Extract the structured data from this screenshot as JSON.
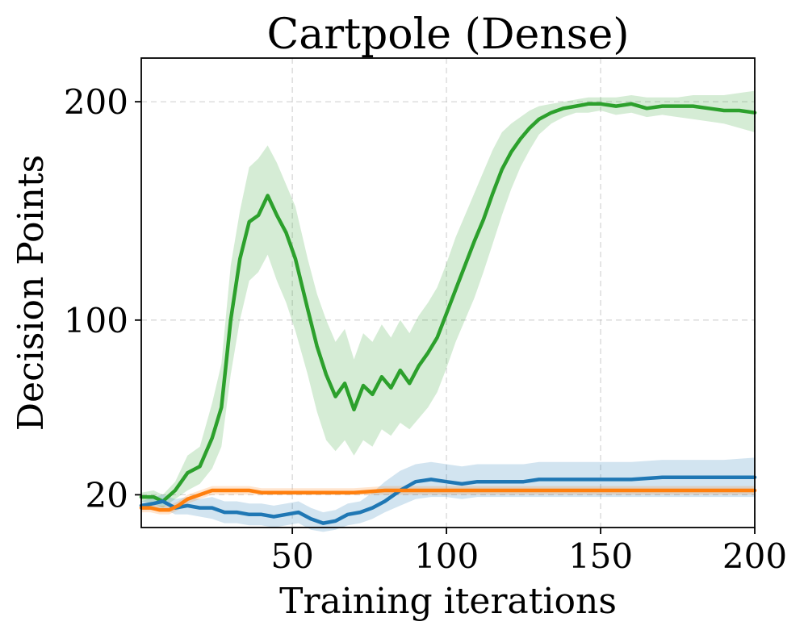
{
  "chart_data": {
    "type": "line",
    "title": "Cartpole (Dense)",
    "xlabel": "Training iterations",
    "ylabel": "Decision Points",
    "xlim": [
      1,
      200
    ],
    "ylim": [
      5,
      220
    ],
    "xticks": [
      50,
      100,
      150,
      200
    ],
    "xtick_labels": [
      "50",
      "100",
      "150",
      "200"
    ],
    "yticks": [
      20,
      100,
      200
    ],
    "ytick_labels": [
      "20",
      "100",
      "200"
    ],
    "grid": true,
    "series": [
      {
        "name": "green",
        "color": "#2ca02c",
        "band_color": "#2ca02c",
        "x": [
          1,
          5,
          8,
          12,
          16,
          20,
          24,
          27,
          30,
          33,
          36,
          39,
          42,
          45,
          48,
          51,
          55,
          58,
          61,
          64,
          67,
          70,
          73,
          76,
          79,
          82,
          85,
          88,
          91,
          94,
          97,
          100,
          103,
          106,
          109,
          112,
          115,
          118,
          121,
          124,
          127,
          130,
          134,
          138,
          142,
          146,
          150,
          155,
          160,
          165,
          170,
          175,
          180,
          185,
          190,
          195,
          200
        ],
        "values": [
          19,
          19,
          17,
          22,
          30,
          33,
          46,
          60,
          100,
          128,
          145,
          148,
          157,
          148,
          140,
          128,
          105,
          88,
          75,
          65,
          71,
          59,
          70,
          66,
          74,
          69,
          77,
          71,
          79,
          85,
          92,
          103,
          114,
          125,
          136,
          146,
          158,
          169,
          177,
          183,
          188,
          192,
          195,
          197,
          198,
          199,
          199,
          198,
          199,
          197,
          198,
          198,
          198,
          197,
          196,
          196,
          195
        ],
        "lower": [
          17,
          16,
          14,
          18,
          22,
          25,
          32,
          42,
          75,
          100,
          118,
          122,
          130,
          118,
          108,
          95,
          75,
          58,
          45,
          40,
          45,
          38,
          45,
          42,
          50,
          47,
          53,
          50,
          55,
          60,
          67,
          78,
          90,
          100,
          110,
          122,
          135,
          148,
          160,
          170,
          178,
          185,
          190,
          193,
          195,
          195,
          196,
          194,
          195,
          193,
          194,
          193,
          192,
          191,
          190,
          188,
          186
        ],
        "upper": [
          21,
          22,
          20,
          26,
          38,
          42,
          62,
          80,
          125,
          150,
          170,
          174,
          180,
          172,
          162,
          152,
          128,
          112,
          100,
          90,
          96,
          82,
          94,
          90,
          98,
          92,
          100,
          94,
          102,
          108,
          115,
          126,
          138,
          148,
          158,
          168,
          178,
          186,
          190,
          193,
          196,
          198,
          199,
          200,
          201,
          202,
          202,
          202,
          203,
          202,
          202,
          202,
          203,
          203,
          203,
          204,
          205
        ]
      },
      {
        "name": "blue",
        "color": "#1f77b4",
        "band_color": "#1f77b4",
        "x": [
          1,
          5,
          8,
          12,
          16,
          20,
          24,
          28,
          32,
          36,
          40,
          44,
          48,
          52,
          56,
          60,
          64,
          68,
          72,
          76,
          80,
          85,
          90,
          95,
          100,
          105,
          110,
          115,
          120,
          125,
          130,
          140,
          150,
          160,
          170,
          180,
          190,
          200
        ],
        "values": [
          15,
          16,
          17,
          14,
          15,
          14,
          14,
          12,
          12,
          11,
          11,
          10,
          11,
          12,
          9,
          7,
          8,
          11,
          12,
          14,
          17,
          22,
          26,
          27,
          26,
          25,
          26,
          26,
          26,
          26,
          27,
          27,
          27,
          27,
          28,
          28,
          28,
          28
        ],
        "lower": [
          13,
          13,
          14,
          11,
          11,
          10,
          9,
          7,
          7,
          6,
          6,
          5,
          6,
          7,
          4,
          3,
          4,
          6,
          7,
          9,
          12,
          15,
          18,
          19,
          19,
          18,
          19,
          19,
          19,
          19,
          19,
          19,
          19,
          19,
          19,
          19,
          19,
          19
        ],
        "upper": [
          17,
          19,
          20,
          18,
          19,
          18,
          19,
          17,
          17,
          16,
          16,
          15,
          16,
          17,
          14,
          12,
          13,
          16,
          17,
          21,
          26,
          31,
          34,
          35,
          34,
          33,
          34,
          34,
          34,
          34,
          35,
          35,
          35,
          35,
          36,
          36,
          36,
          37
        ]
      },
      {
        "name": "orange",
        "color": "#ff7f0e",
        "band_color": "#ff7f0e",
        "x": [
          1,
          4,
          7,
          10,
          13,
          16,
          20,
          24,
          28,
          32,
          36,
          40,
          45,
          50,
          55,
          60,
          65,
          70,
          80,
          90,
          100,
          110,
          120,
          130,
          140,
          150,
          160,
          170,
          180,
          190,
          200
        ],
        "values": [
          14,
          14,
          13,
          13,
          15,
          18,
          20,
          22,
          22,
          22,
          22,
          21,
          21,
          21,
          21,
          21,
          21,
          21,
          22,
          22,
          22,
          22,
          22,
          22,
          22,
          22,
          22,
          22,
          22,
          22,
          22
        ],
        "lower": [
          12,
          12,
          11,
          11,
          13,
          16,
          18,
          20,
          20,
          20,
          20,
          20,
          20,
          20,
          20,
          20,
          20,
          20,
          20,
          20,
          20,
          20,
          20,
          20,
          20,
          20,
          20,
          20,
          20,
          20,
          20
        ],
        "upper": [
          16,
          16,
          15,
          15,
          17,
          20,
          22,
          24,
          24,
          24,
          24,
          23,
          23,
          23,
          23,
          23,
          23,
          23,
          24,
          24,
          24,
          24,
          24,
          24,
          24,
          24,
          24,
          24,
          24,
          24,
          24
        ]
      }
    ]
  }
}
